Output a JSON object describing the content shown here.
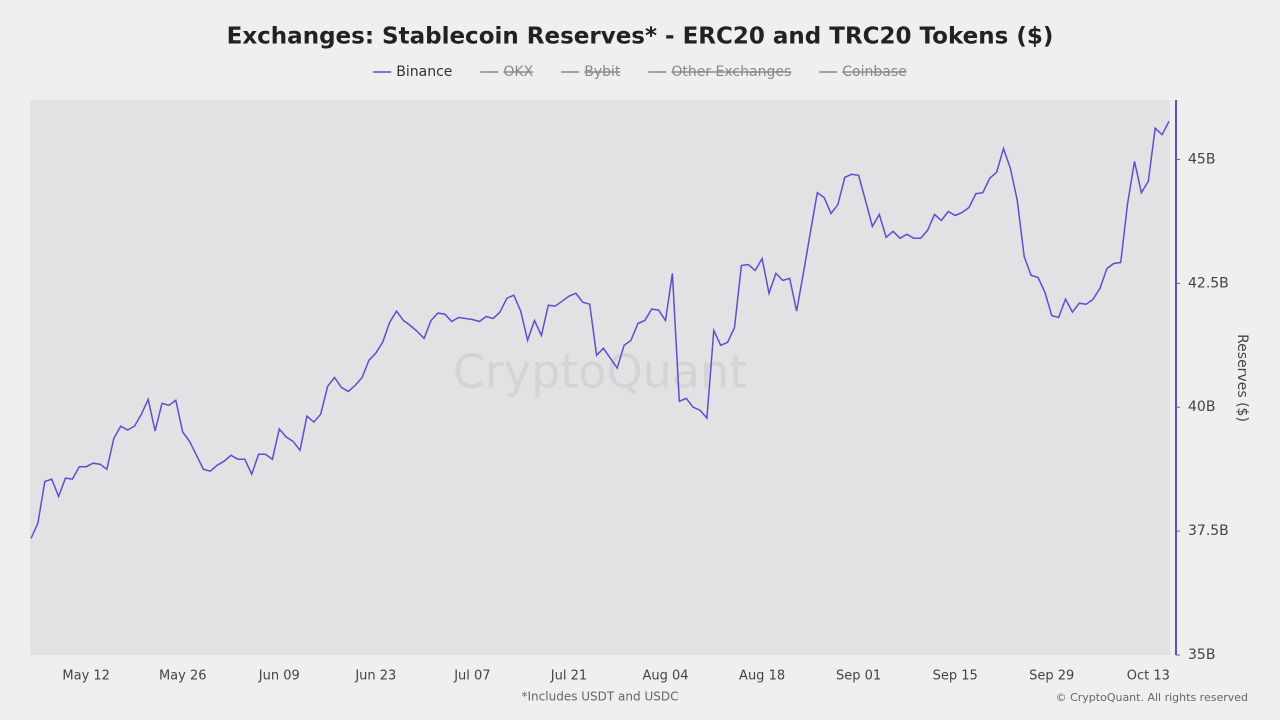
{
  "chart_data": {
    "type": "line",
    "title": "Exchanges: Stablecoin Reserves* - ERC20 and TRC20 Tokens ($)",
    "y_axis_label": "Reserves ($)",
    "footnote": "*Includes USDT and USDC",
    "copyright": "© CryptoQuant. All rights reserved",
    "watermark": "CryptoQuant",
    "categories": [
      null,
      null,
      null,
      null,
      null,
      null,
      null,
      null,
      "May 12",
      null,
      null,
      null,
      null,
      null,
      null,
      null,
      null,
      null,
      null,
      null,
      null,
      null,
      "May 26",
      null,
      null,
      null,
      null,
      null,
      null,
      null,
      null,
      null,
      null,
      null,
      null,
      null,
      "Jun 09",
      null,
      null,
      null,
      null,
      null,
      null,
      null,
      null,
      null,
      null,
      null,
      null,
      null,
      "Jun 23",
      null,
      null,
      null,
      null,
      null,
      null,
      null,
      null,
      null,
      null,
      null,
      null,
      null,
      "Jul 07",
      null,
      null,
      null,
      null,
      null,
      null,
      null,
      null,
      null,
      null,
      null,
      null,
      null,
      "Jul 21",
      null,
      null,
      null,
      null,
      null,
      null,
      null,
      null,
      null,
      null,
      null,
      null,
      null,
      "Aug 04",
      null,
      null,
      null,
      null,
      null,
      null,
      null,
      null,
      null,
      null,
      null,
      null,
      null,
      "Aug 18",
      null,
      null,
      null,
      null,
      null,
      null,
      null,
      null,
      null,
      null,
      null,
      null,
      null,
      "Sep 01",
      null,
      null,
      null,
      null,
      null,
      null,
      null,
      null,
      null,
      null,
      null,
      null,
      null,
      "Sep 15",
      null,
      null,
      null,
      null,
      null,
      null,
      null,
      null,
      null,
      null,
      null,
      null,
      null,
      "Sep 29",
      null,
      null,
      null,
      null,
      null,
      null,
      null,
      null,
      null,
      null,
      null,
      null,
      null,
      "Oct 13",
      null,
      null,
      null
    ],
    "series": [
      {
        "name": "Binance",
        "color": "#5b4fd0",
        "values": [
          37.35,
          37.66,
          38.5,
          38.55,
          38.2,
          38.57,
          38.55,
          38.8,
          38.8,
          38.87,
          38.85,
          38.75,
          39.37,
          39.62,
          39.54,
          39.62,
          39.86,
          40.16,
          39.52,
          40.08,
          40.04,
          40.14,
          39.5,
          39.31,
          39.03,
          38.75,
          38.71,
          38.83,
          38.91,
          39.03,
          38.95,
          38.95,
          38.65,
          39.05,
          39.05,
          38.95,
          39.56,
          39.4,
          39.31,
          39.13,
          39.82,
          39.7,
          39.86,
          40.42,
          40.6,
          40.4,
          40.32,
          40.44,
          40.6,
          40.95,
          41.09,
          41.31,
          41.71,
          41.94,
          41.75,
          41.65,
          41.53,
          41.39,
          41.75,
          41.9,
          41.88,
          41.73,
          41.81,
          41.79,
          41.77,
          41.73,
          41.83,
          41.79,
          41.92,
          42.2,
          42.26,
          41.94,
          41.35,
          41.75,
          41.45,
          42.06,
          42.04,
          42.14,
          42.24,
          42.3,
          42.12,
          42.08,
          41.05,
          41.19,
          40.99,
          40.79,
          41.25,
          41.35,
          41.69,
          41.75,
          41.98,
          41.96,
          41.75,
          42.7,
          40.12,
          40.18,
          40.0,
          39.94,
          39.78,
          41.55,
          41.25,
          41.31,
          41.61,
          42.86,
          42.88,
          42.76,
          43.0,
          42.3,
          42.7,
          42.56,
          42.6,
          41.94,
          42.72,
          43.53,
          44.33,
          44.23,
          43.91,
          44.09,
          44.64,
          44.7,
          44.68,
          44.17,
          43.65,
          43.89,
          43.43,
          43.55,
          43.41,
          43.49,
          43.41,
          43.41,
          43.57,
          43.89,
          43.77,
          43.95,
          43.87,
          43.93,
          44.03,
          44.31,
          44.33,
          44.62,
          44.74,
          45.22,
          44.82,
          44.17,
          43.04,
          42.66,
          42.62,
          42.32,
          41.85,
          41.81,
          42.18,
          41.92,
          42.1,
          42.08,
          42.18,
          42.4,
          42.8,
          42.9,
          42.92,
          44.11,
          44.96,
          44.33,
          44.56,
          45.63,
          45.5,
          45.77
        ]
      }
    ],
    "hidden_series": [
      "OKX",
      "Bybit",
      "Other Exchanges",
      "Coinbase"
    ],
    "hidden_color": "#888888",
    "ylim": [
      35,
      46.2
    ],
    "yticks": [
      {
        "value": 35,
        "label": "35B"
      },
      {
        "value": 37.5,
        "label": "37.5B"
      },
      {
        "value": 40,
        "label": "40B"
      },
      {
        "value": 42.5,
        "label": "42.5B"
      },
      {
        "value": 45,
        "label": "45B"
      }
    ],
    "y_axis_side": "right",
    "grid": false
  }
}
